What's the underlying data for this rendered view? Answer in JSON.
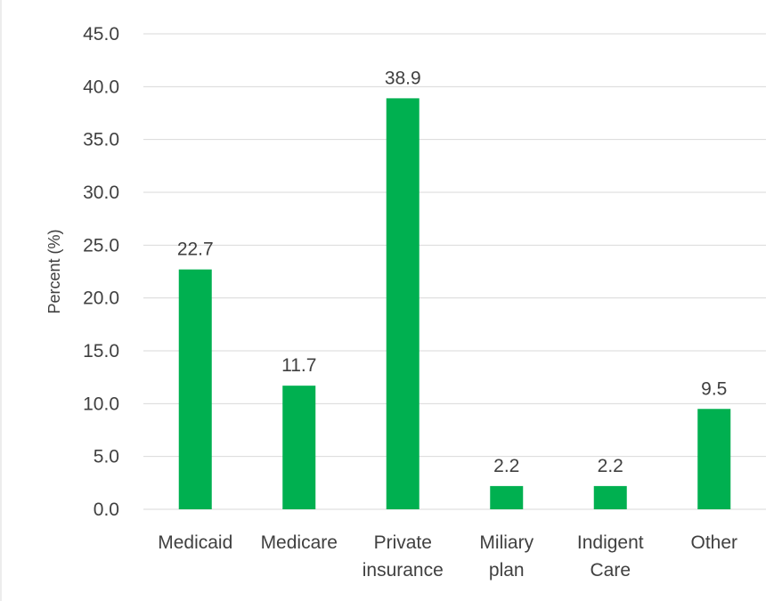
{
  "chart_data": {
    "type": "bar",
    "title": "",
    "categories": [
      [
        "Medicaid"
      ],
      [
        "Medicare"
      ],
      [
        "Private",
        "insurance"
      ],
      [
        "Miliary",
        "plan"
      ],
      [
        "Indigent",
        "Care"
      ],
      [
        "Other"
      ]
    ],
    "values": [
      22.7,
      11.7,
      38.9,
      2.2,
      2.2,
      9.5
    ],
    "data_labels": [
      "22.7",
      "11.7",
      "38.9",
      "2.2",
      "2.2",
      "9.5"
    ],
    "ylabel": "Percent (%)",
    "xlabel": "",
    "ylim": [
      0,
      45
    ],
    "yticks": [
      0,
      5,
      10,
      15,
      20,
      25,
      30,
      35,
      40,
      45
    ],
    "ytick_labels": [
      "0.0",
      "5.0",
      "10.0",
      "15.0",
      "20.0",
      "25.0",
      "30.0",
      "35.0",
      "40.0",
      "45.0"
    ],
    "grid": true,
    "legend": "none",
    "colors": {
      "bar": "#00b050",
      "grid": "#d9d9d9",
      "text": "#404040",
      "frame": "#d9d9d9"
    }
  }
}
